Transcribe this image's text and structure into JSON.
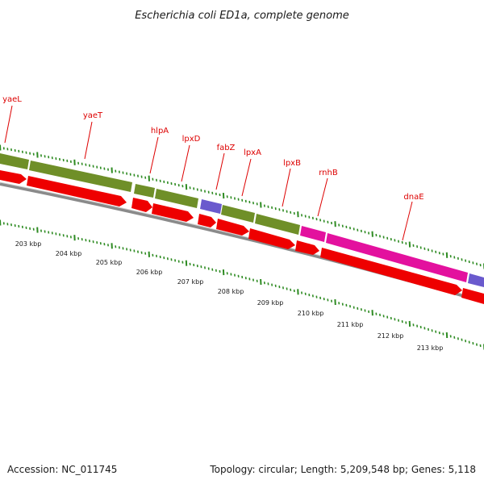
{
  "title": "Escherichia coli ED1a, complete genome",
  "accession": "Accession: NC_011745",
  "summary": "Topology: circular; Length: 5,209,548 bp; Genes: 5,118",
  "colors": {
    "backbone": "#8a8a8a",
    "tick": "#2e8b22",
    "label": "#dd0000",
    "cds": "#ee0000",
    "category_olive": "#6f8f28",
    "category_purple": "#6a5acd",
    "category_magenta": "#e3119e"
  },
  "genes": [
    {
      "name": "yaeL"
    },
    {
      "name": "yaeT"
    },
    {
      "name": "hlpA"
    },
    {
      "name": "lpxD"
    },
    {
      "name": "fabZ"
    },
    {
      "name": "lpxA"
    },
    {
      "name": "lpxB"
    },
    {
      "name": "rnhB"
    },
    {
      "name": "dnaE"
    }
  ],
  "kbp_labels": [
    "203 kbp",
    "204 kbp",
    "205 kbp",
    "206 kbp",
    "207 kbp",
    "208 kbp",
    "209 kbp",
    "210 kbp",
    "211 kbp",
    "212 kbp",
    "213 kbp"
  ]
}
